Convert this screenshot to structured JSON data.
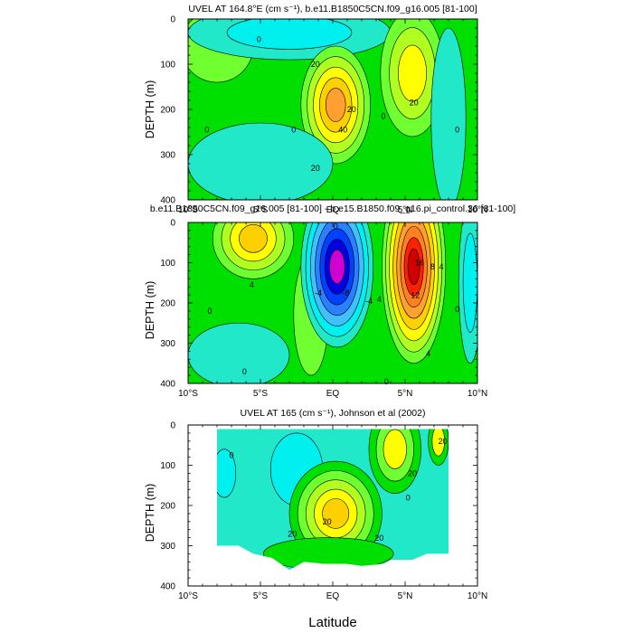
{
  "figure": {
    "xlabel": "Latitude",
    "colors": {
      "cyan": "#00f0f0",
      "lightcyan": "#40ffe0",
      "aqua": "#20e8c8",
      "green": "#00e000",
      "lightgreen": "#70ff30",
      "yellowgreen": "#b0ff20",
      "yellow": "#ffff00",
      "lightorange": "#ffd000",
      "orange": "#ffa030",
      "darkorange": "#ff8020",
      "red": "#ff2000",
      "darkred": "#d00000",
      "blue": "#0040ff",
      "darkblue": "#0000e0",
      "medblue": "#2a80ff",
      "skyblue": "#40c0ff",
      "magenta": "#d000d0"
    }
  },
  "chart_data": [
    {
      "type": "contour",
      "title": "UVEL AT 164.8°E (cm s⁻¹), b.e11.B1850C5CN.f09_g16.005 [81-100]",
      "ylabel": "DEPTH (m)",
      "xlim": [
        -10,
        10
      ],
      "ylim": [
        400,
        0
      ],
      "x_ticks": [
        -10,
        -5,
        0,
        5,
        10
      ],
      "x_tick_labels": [
        "10°S",
        "5°S",
        "EQ",
        "5°N",
        "10°N"
      ],
      "y_ticks": [
        0,
        100,
        200,
        300,
        400
      ],
      "y_tick_labels": [
        "0",
        "100",
        "200",
        "300",
        "400"
      ],
      "background_color": "green",
      "features": [
        {
          "lat": -8,
          "depth": 60,
          "rlat": 2.5,
          "rdepth": 80,
          "levels": [
            "lightgreen"
          ]
        },
        {
          "lat": -3,
          "depth": 30,
          "rlat": 7,
          "rdepth": 60,
          "levels": [
            "aqua",
            "cyan"
          ]
        },
        {
          "lat": 0.2,
          "depth": 190,
          "rlat": 2.4,
          "rdepth": 130,
          "levels": [
            "lightgreen",
            "yellowgreen",
            "yellow",
            "lightorange",
            "orange"
          ]
        },
        {
          "lat": 5.5,
          "depth": 120,
          "rlat": 2.2,
          "rdepth": 140,
          "levels": [
            "lightgreen",
            "yellowgreen",
            "yellow"
          ]
        },
        {
          "lat": 8,
          "depth": 220,
          "rlat": 1.2,
          "rdepth": 200,
          "levels": [
            "aqua"
          ]
        },
        {
          "lat": -5,
          "depth": 320,
          "rlat": 5,
          "rdepth": 90,
          "levels": [
            "aqua"
          ]
        }
      ],
      "contour_labels": [
        {
          "text": "20",
          "lat": -1.2,
          "depth": 100
        },
        {
          "text": "20",
          "lat": 1.3,
          "depth": 200
        },
        {
          "text": "40",
          "lat": 0.7,
          "depth": 245
        },
        {
          "text": "20",
          "lat": -1.2,
          "depth": 330
        },
        {
          "text": "20",
          "lat": 5.6,
          "depth": 185
        },
        {
          "text": "0",
          "lat": -5.1,
          "depth": 45
        },
        {
          "text": "0",
          "lat": -8.7,
          "depth": 245
        },
        {
          "text": "0",
          "lat": -2.7,
          "depth": 245
        },
        {
          "text": "0",
          "lat": 3.5,
          "depth": 215
        },
        {
          "text": "0",
          "lat": 8.6,
          "depth": 245
        }
      ]
    },
    {
      "type": "contour",
      "title": "b.e11.B1850C5CN.f09_g16.005 [81-100] - b.e15.B1850.f09_g16.pi_control.36 [81-100]",
      "ylabel": "DEPTH (m)",
      "xlim": [
        -10,
        10
      ],
      "ylim": [
        400,
        0
      ],
      "x_ticks": [
        -10,
        -5,
        0,
        5,
        10
      ],
      "x_tick_labels": [
        "10°S",
        "5°S",
        "EQ",
        "5°N",
        "10°N"
      ],
      "y_ticks": [
        0,
        100,
        200,
        300,
        400
      ],
      "y_tick_labels": [
        "0",
        "100",
        "200",
        "300",
        "400"
      ],
      "background_color": "green",
      "features": [
        {
          "lat": -5.5,
          "depth": 40,
          "rlat": 2.8,
          "rdepth": 100,
          "levels": [
            "lightgreen",
            "yellowgreen",
            "yellow",
            "lightorange"
          ]
        },
        {
          "lat": -6.5,
          "depth": 330,
          "rlat": 3.5,
          "rdepth": 80,
          "levels": [
            "aqua"
          ]
        },
        {
          "lat": -1.5,
          "depth": 230,
          "rlat": 1.2,
          "rdepth": 150,
          "levels": [
            "lightgreen"
          ]
        },
        {
          "lat": 0.3,
          "depth": 110,
          "rlat": 2.5,
          "rdepth": 200,
          "levels": [
            "aqua",
            "cyan",
            "skyblue",
            "medblue",
            "blue",
            "darkblue",
            "magenta"
          ]
        },
        {
          "lat": 5.6,
          "depth": 110,
          "rlat": 2.2,
          "rdepth": 240,
          "levels": [
            "lightgreen",
            "yellowgreen",
            "yellow",
            "lightorange",
            "orange",
            "darkorange",
            "red",
            "darkred"
          ]
        },
        {
          "lat": 9.5,
          "depth": 150,
          "rlat": 0.8,
          "rdepth": 200,
          "levels": [
            "aqua",
            "cyan"
          ]
        }
      ],
      "contour_labels": [
        {
          "text": "4",
          "lat": -5.6,
          "depth": 155
        },
        {
          "text": "4",
          "lat": 3.2,
          "depth": 190
        },
        {
          "text": "-4",
          "lat": -1.0,
          "depth": 175
        },
        {
          "text": "-8",
          "lat": 0.9,
          "depth": 175
        },
        {
          "text": "-4",
          "lat": 2.5,
          "depth": 195
        },
        {
          "text": "12",
          "lat": 5.7,
          "depth": 180
        },
        {
          "text": "8",
          "lat": 6.9,
          "depth": 110
        },
        {
          "text": "4",
          "lat": 7.5,
          "depth": 110
        },
        {
          "text": "16",
          "lat": 6.0,
          "depth": 100
        },
        {
          "text": "4",
          "lat": 6.6,
          "depth": 325
        },
        {
          "text": "0",
          "lat": -8.5,
          "depth": 220
        },
        {
          "text": "0",
          "lat": -6.1,
          "depth": 370
        },
        {
          "text": "0",
          "lat": 8.6,
          "depth": 215
        },
        {
          "text": "0",
          "lat": 3.7,
          "depth": 395
        },
        {
          "text": "0",
          "lat": 0.2,
          "depth": 10
        }
      ]
    },
    {
      "type": "contour",
      "title": "UVEL AT 165 (cm s⁻¹), Johnson et al (2002)",
      "ylabel": "DEPTH (m)",
      "xlim": [
        -10,
        10
      ],
      "ylim": [
        400,
        0
      ],
      "x_ticks": [
        -10,
        -5,
        0,
        5,
        10
      ],
      "x_tick_labels": [
        "10°S",
        "5°S",
        "EQ",
        "5°N",
        "10°N"
      ],
      "y_ticks": [
        0,
        100,
        200,
        300,
        400
      ],
      "y_tick_labels": [
        "0",
        "100",
        "200",
        "300",
        "400"
      ],
      "data_extent": {
        "lat_min": -8,
        "lat_max": 8,
        "depth_top": 10
      },
      "data_bottom_depths": [
        {
          "lat": -8,
          "depth": 300
        },
        {
          "lat": -6.5,
          "depth": 300
        },
        {
          "lat": -5.5,
          "depth": 320
        },
        {
          "lat": -4.2,
          "depth": 330
        },
        {
          "lat": -3,
          "depth": 360
        },
        {
          "lat": -2,
          "depth": 340
        },
        {
          "lat": -0.5,
          "depth": 345
        },
        {
          "lat": 1,
          "depth": 345
        },
        {
          "lat": 2,
          "depth": 350
        },
        {
          "lat": 3.5,
          "depth": 345
        },
        {
          "lat": 4,
          "depth": 335
        },
        {
          "lat": 5.5,
          "depth": 335
        },
        {
          "lat": 6.5,
          "depth": 320
        },
        {
          "lat": 8,
          "depth": 320
        }
      ],
      "background_color": "aqua",
      "features": [
        {
          "lat": -7.5,
          "depth": 120,
          "rlat": 0.8,
          "rdepth": 60,
          "levels": [
            "cyan"
          ]
        },
        {
          "lat": -2.5,
          "depth": 110,
          "rlat": 1.8,
          "rdepth": 90,
          "levels": [
            "cyan"
          ]
        },
        {
          "lat": 0.2,
          "depth": 220,
          "rlat": 3.2,
          "rdepth": 130,
          "levels": [
            "green",
            "lightgreen",
            "yellowgreen",
            "yellow",
            "lightorange"
          ]
        },
        {
          "lat": 4.3,
          "depth": 60,
          "rlat": 1.8,
          "rdepth": 110,
          "levels": [
            "green",
            "lightgreen",
            "yellow"
          ]
        },
        {
          "lat": 7.3,
          "depth": 40,
          "rlat": 0.7,
          "rdepth": 60,
          "levels": [
            "green",
            "yellow"
          ]
        },
        {
          "lat": -0.3,
          "depth": 320,
          "rlat": 4.5,
          "rdepth": 40,
          "levels": [
            "green"
          ]
        }
      ],
      "contour_labels": [
        {
          "text": "20",
          "lat": -2.8,
          "depth": 270
        },
        {
          "text": "20",
          "lat": -0.4,
          "depth": 240
        },
        {
          "text": "20",
          "lat": 3.2,
          "depth": 280
        },
        {
          "text": "20",
          "lat": 5.5,
          "depth": 120
        },
        {
          "text": "20",
          "lat": 7.6,
          "depth": 40
        },
        {
          "text": "0",
          "lat": 5.2,
          "depth": 180
        },
        {
          "text": "0",
          "lat": -7.0,
          "depth": 75
        }
      ]
    }
  ]
}
